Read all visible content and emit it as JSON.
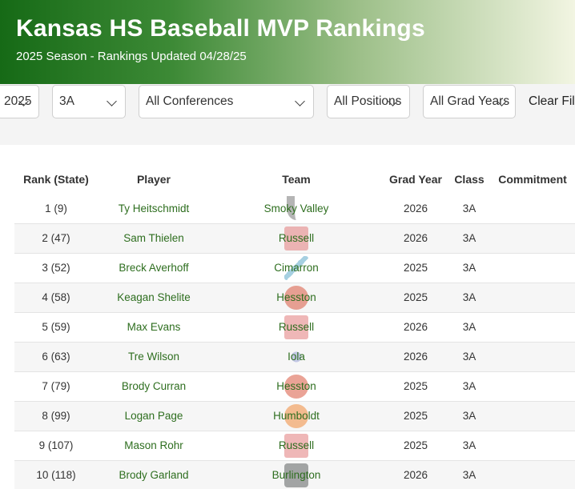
{
  "header": {
    "title": "Kansas HS Baseball MVP Rankings",
    "subtitle": "2025 Season - Rankings Updated 04/28/25"
  },
  "filters": {
    "year": "2025",
    "class": "3A",
    "conference": "All Conferences",
    "position": "All Positions",
    "grad_year": "All Grad Years",
    "clear_label": "Clear Filters"
  },
  "table": {
    "headers": [
      "Rank (State)",
      "Player",
      "Team",
      "Grad Year",
      "Class",
      "Commitment"
    ],
    "rows": [
      {
        "rank": "1 (9)",
        "player": "Ty Heitschmidt",
        "team": "Smoky Valley",
        "logo": "smoky",
        "grad": "2026",
        "class": "3A",
        "commit": ""
      },
      {
        "rank": "2 (47)",
        "player": "Sam Thielen",
        "team": "Russell",
        "logo": "russell",
        "grad": "2026",
        "class": "3A",
        "commit": ""
      },
      {
        "rank": "3 (52)",
        "player": "Breck Averhoff",
        "team": "Cimarron",
        "logo": "cimarron",
        "grad": "2025",
        "class": "3A",
        "commit": ""
      },
      {
        "rank": "4 (58)",
        "player": "Keagan Shelite",
        "team": "Hesston",
        "logo": "hesston",
        "grad": "2025",
        "class": "3A",
        "commit": ""
      },
      {
        "rank": "5 (59)",
        "player": "Max Evans",
        "team": "Russell",
        "logo": "russell",
        "grad": "2026",
        "class": "3A",
        "commit": ""
      },
      {
        "rank": "6 (63)",
        "player": "Tre Wilson",
        "team": "Iola",
        "logo": "iola",
        "grad": "2026",
        "class": "3A",
        "commit": ""
      },
      {
        "rank": "7 (79)",
        "player": "Brody Curran",
        "team": "Hesston",
        "logo": "hesston",
        "grad": "2025",
        "class": "3A",
        "commit": ""
      },
      {
        "rank": "8 (99)",
        "player": "Logan Page",
        "team": "Humboldt",
        "logo": "humboldt",
        "grad": "2025",
        "class": "3A",
        "commit": ""
      },
      {
        "rank": "9 (107)",
        "player": "Mason Rohr",
        "team": "Russell",
        "logo": "russell",
        "grad": "2025",
        "class": "3A",
        "commit": ""
      },
      {
        "rank": "10 (118)",
        "player": "Brody Garland",
        "team": "Burlington",
        "logo": "burlington",
        "grad": "2026",
        "class": "3A",
        "commit": ""
      }
    ]
  },
  "colors": {
    "header_dark": "#166a16",
    "header_light": "#f2f5e2",
    "link_green": "#2e6e1f"
  }
}
